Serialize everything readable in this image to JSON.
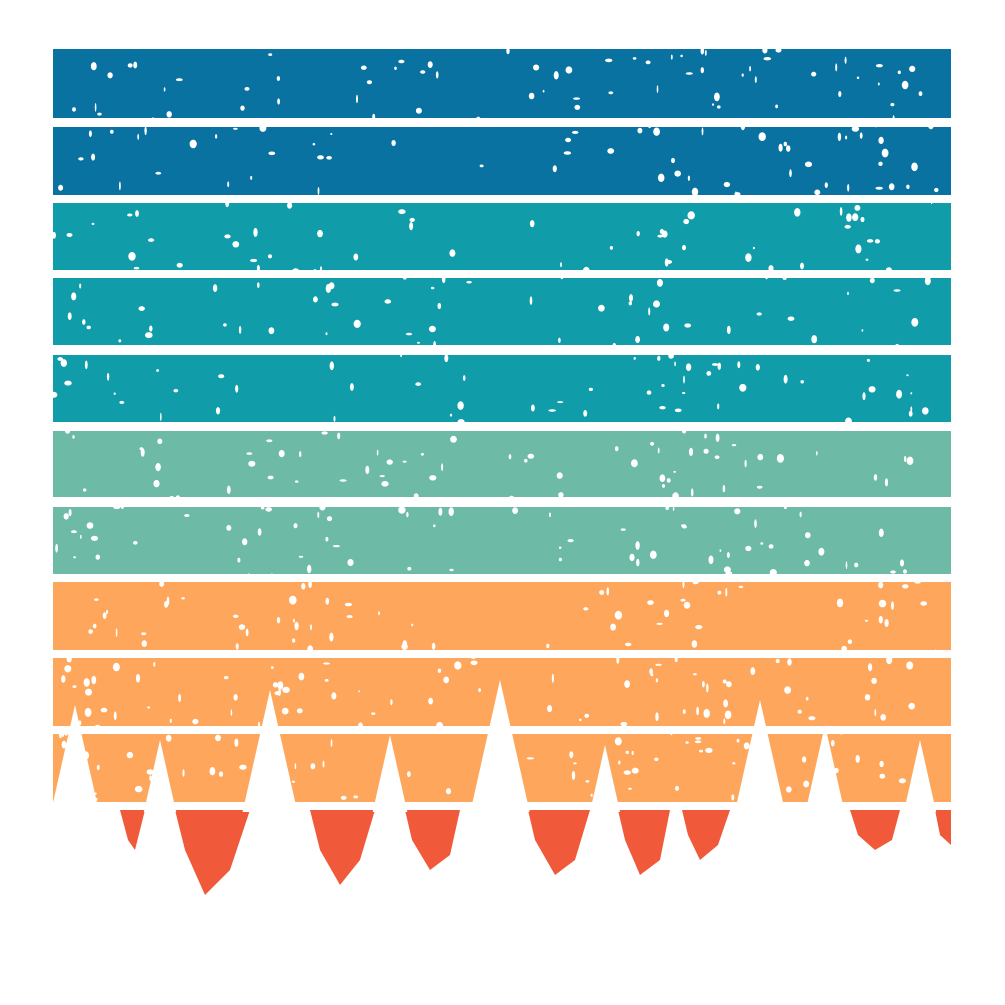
{
  "stripes": [
    {
      "color": "#0a72a0"
    },
    {
      "color": "#0a72a0"
    },
    {
      "color": "#119ca9"
    },
    {
      "color": "#119ca9"
    },
    {
      "color": "#119ca9"
    },
    {
      "color": "#6dbaa6"
    },
    {
      "color": "#6dbaa6"
    },
    {
      "color": "#fea75c"
    },
    {
      "color": "#fea75c"
    },
    {
      "color": "#fea75c"
    }
  ]
}
